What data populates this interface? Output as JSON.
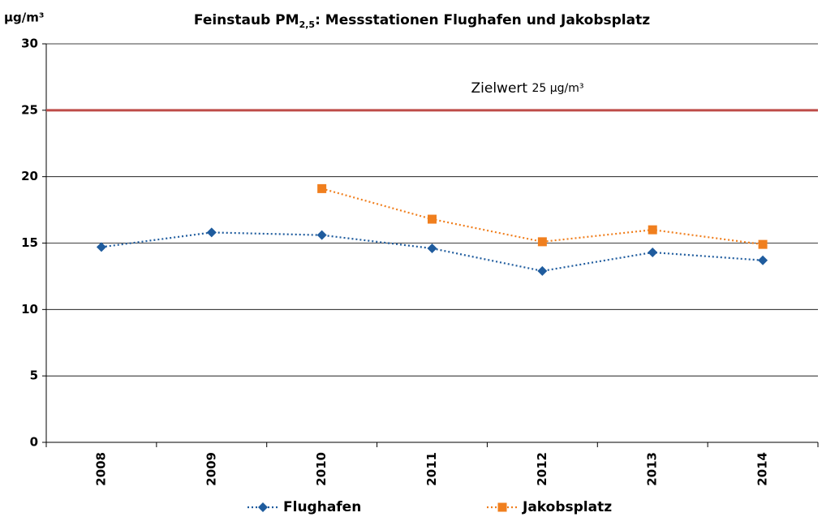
{
  "chart_data": {
    "type": "line",
    "title": [
      "Feinstaub PM",
      "2,5",
      ": Messstationen Flughafen und Jakobsplatz"
    ],
    "y_axis_label": "µg/m³",
    "categories": [
      "2008",
      "2009",
      "2010",
      "2011",
      "2012",
      "2013",
      "2014"
    ],
    "series": [
      {
        "name": "Flughafen",
        "color": "#1f5c9e",
        "marker": "diamond",
        "values": [
          14.7,
          15.8,
          15.6,
          14.6,
          12.9,
          14.3,
          13.7
        ]
      },
      {
        "name": "Jakobsplatz",
        "color": "#f07f1e",
        "marker": "square",
        "values": [
          null,
          null,
          19.1,
          16.8,
          15.1,
          16.0,
          14.9
        ]
      }
    ],
    "reference_line": {
      "value": 25,
      "color": "#be4b48",
      "label": "Zielwert",
      "label_unit": "25 µg/m³"
    },
    "ylim": [
      0,
      30
    ],
    "yticks": [
      0,
      5,
      10,
      15,
      20,
      25,
      30
    ],
    "grid": true,
    "legend": "bottom"
  }
}
